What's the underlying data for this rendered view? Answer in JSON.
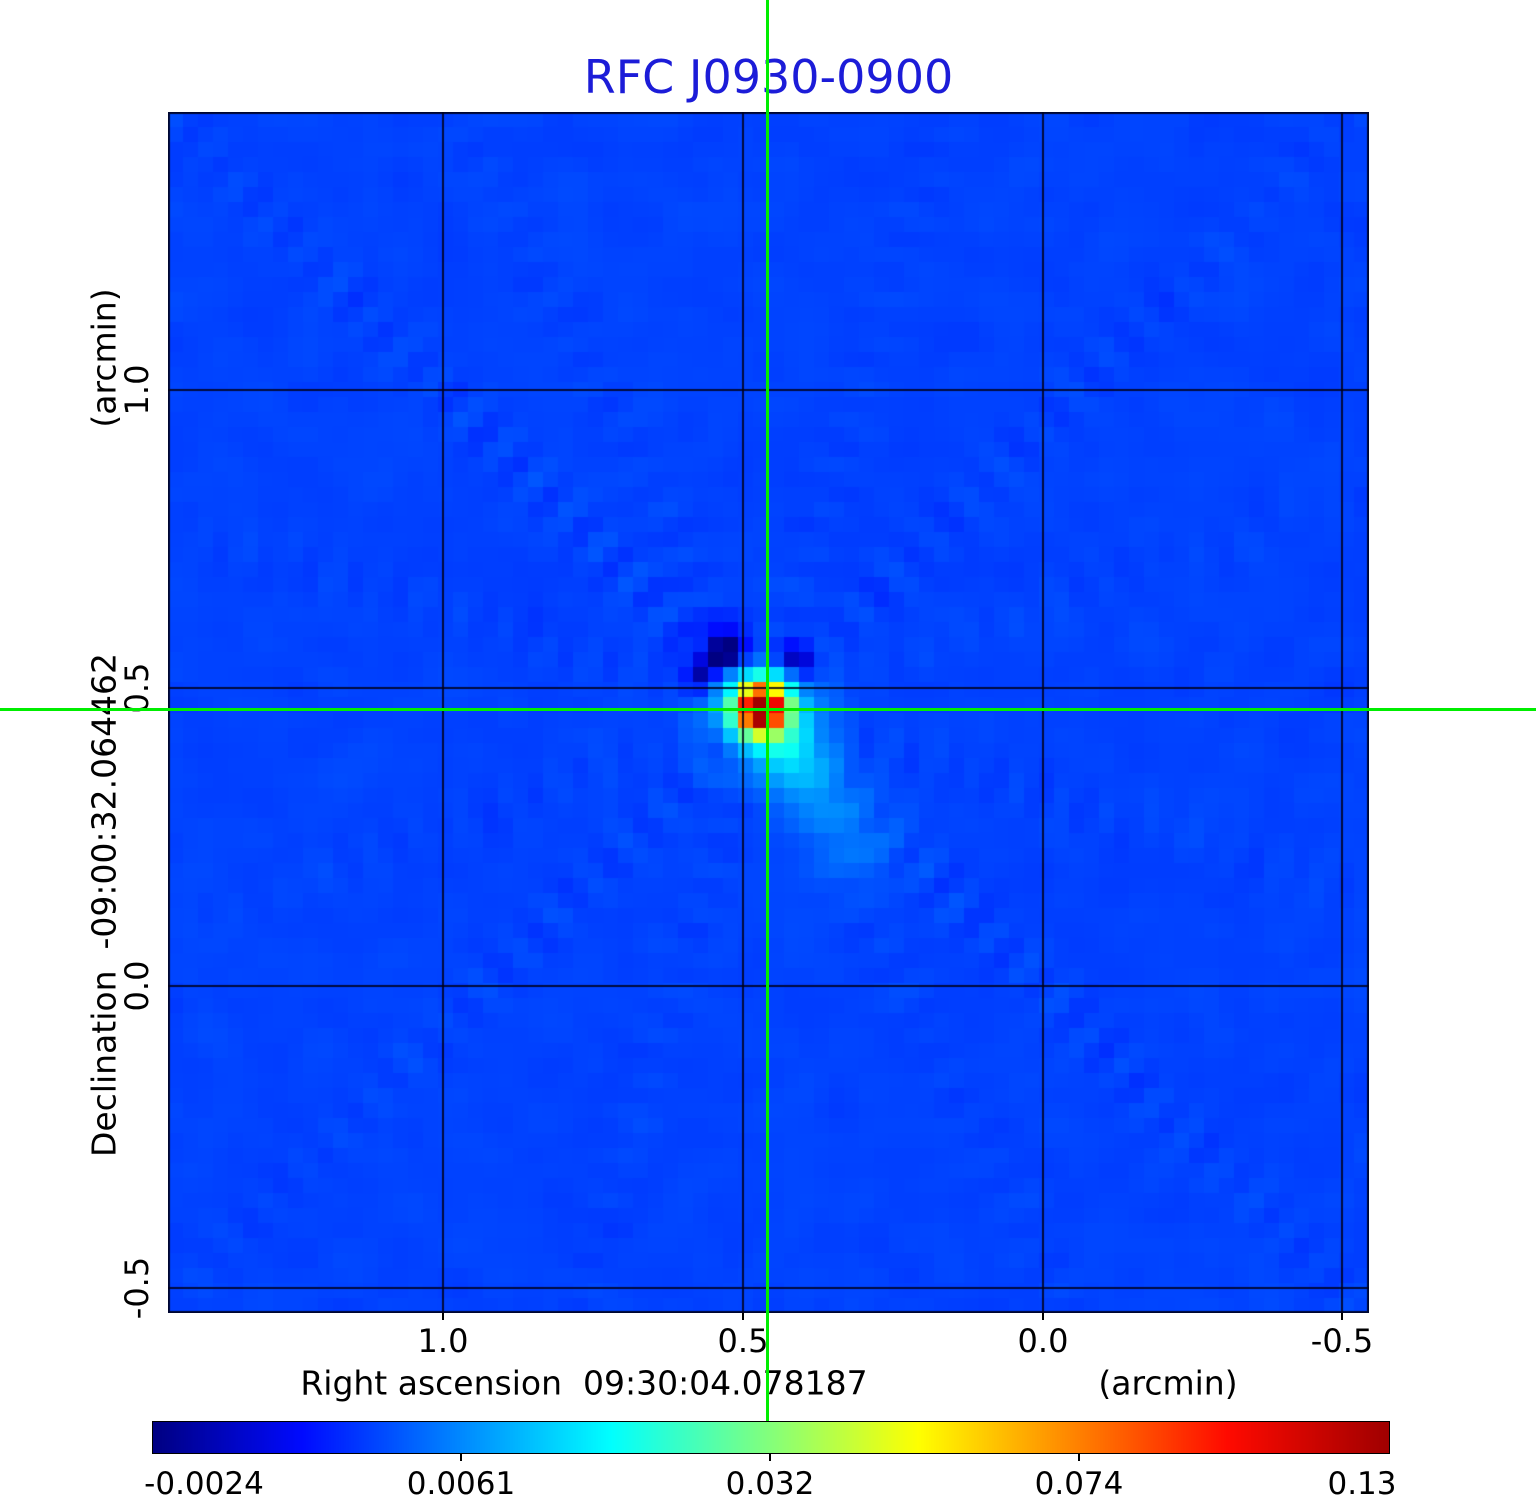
{
  "title": {
    "text": "RFC J0930-0900",
    "color": "#1c1cd8"
  },
  "axes": {
    "x": {
      "label": "Right ascension  09:30:04.078187",
      "unit": "(arcmin)",
      "tick_labels": [
        "1.0",
        "0.5",
        "0.0",
        "-0.5"
      ]
    },
    "y": {
      "label": "Declination  -09:00:32.064462",
      "unit": "(arcmin)",
      "tick_labels": [
        "1.0",
        "0.5",
        "0.0",
        "-0.5"
      ]
    }
  },
  "colorbar": {
    "tick_labels": [
      "-0.0024",
      "0.0061",
      "0.032",
      "0.074",
      "0.13"
    ]
  },
  "crosshair": {
    "color": "#00ee00"
  },
  "chart_data": {
    "type": "heatmap",
    "title": "RFC J0930-0900",
    "xlabel": "Right ascension  09:30:04.078187 (arcmin)",
    "ylabel": "Declination  -09:00:32.064462 (arcmin)",
    "xlim": [
      1.458,
      -0.545
    ],
    "ylim": [
      -0.542,
      1.463
    ],
    "x_ticks": [
      1.0,
      0.5,
      0.0,
      -0.5
    ],
    "y_ticks": [
      1.0,
      0.5,
      0.0,
      -0.5
    ],
    "grid": true,
    "legend_position": "none",
    "colormap": "jet",
    "scale": "sqrt",
    "vmin": -0.0024,
    "vmax": 0.132,
    "colorbar_ticks": [
      -0.0024,
      0.0061,
      0.032,
      0.074,
      0.13
    ],
    "noise_rms": 0.001,
    "crosshair_arcmin": [
      0.458,
      0.465
    ],
    "source": {
      "name": "RFC J0930-0900",
      "peak_value": 0.137,
      "x_arcmin": 0.458,
      "y_arcmin": 0.465,
      "morphology": "compact point source with dirty-beam sidelobes: negative lobes NW and NE of core, faint positive tail to SE, diagonal ray artifacts across field"
    },
    "colormap_stops": [
      [
        0.0,
        [
          0,
          0,
          130
        ]
      ],
      [
        0.12,
        [
          0,
          10,
          255
        ]
      ],
      [
        0.37,
        [
          0,
          255,
          255
        ]
      ],
      [
        0.62,
        [
          255,
          255,
          0
        ]
      ],
      [
        0.87,
        [
          255,
          10,
          0
        ]
      ],
      [
        1.0,
        [
          160,
          0,
          0
        ]
      ]
    ],
    "render": {
      "seed": 1234,
      "grid_n": 80,
      "background": 0.0018,
      "noise_amp": 0.0011,
      "source_cx": 39.55,
      "source_cy": 39.75,
      "rays": [
        {
          "angle": 45,
          "amp": 0.0013,
          "period": 3.1,
          "phase": 0.5
        },
        {
          "angle": 135,
          "amp": 0.001,
          "period": 3.4,
          "phase": 1.8
        },
        {
          "angle": 17,
          "amp": 0.0006,
          "period": 3.0,
          "phase": 0.2
        },
        {
          "angle": 63,
          "amp": 0.0006,
          "period": 3.2,
          "phase": 2.6
        },
        {
          "angle": 107,
          "amp": 0.0005,
          "period": 2.9,
          "phase": 1.1
        },
        {
          "angle": 160,
          "amp": 0.0005,
          "period": 3.3,
          "phase": 3.9
        }
      ],
      "blobs": [
        {
          "x": 39.55,
          "y": 39.75,
          "s": 0.95,
          "a": 0.155
        },
        {
          "x": 39.6,
          "y": 39.9,
          "s": 2.3,
          "a": 0.013
        },
        {
          "x": 37.3,
          "y": 35.9,
          "s": 1.2,
          "a": -0.0068
        },
        {
          "x": 41.7,
          "y": 36.7,
          "s": 1.1,
          "a": -0.0062
        },
        {
          "x": 35.4,
          "y": 37.6,
          "s": 1.0,
          "a": -0.0035
        },
        {
          "x": 36.9,
          "y": 41.9,
          "s": 1.0,
          "a": -0.002
        },
        {
          "x": 41.4,
          "y": 42.5,
          "s": 1.3,
          "a": 0.009
        },
        {
          "x": 43.1,
          "y": 45.1,
          "s": 1.7,
          "a": 0.0045
        },
        {
          "x": 45.6,
          "y": 48.6,
          "s": 2.2,
          "a": 0.0028
        }
      ]
    }
  }
}
